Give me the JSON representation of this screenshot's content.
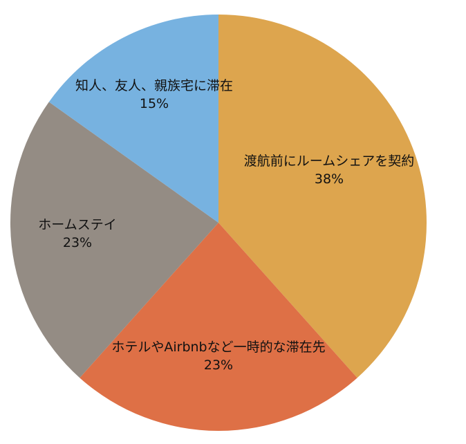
{
  "chart_data": {
    "type": "pie",
    "start_angle_deg": 0,
    "direction": "clockwise",
    "slices": [
      {
        "label": "渡航前にルームシェアを契約",
        "value": 38,
        "value_label": "38%",
        "color": "#DDA54E"
      },
      {
        "label": "ホテルやAirbnbなど一時的な滞在先",
        "value": 23,
        "value_label": "23%",
        "color": "#DE7046"
      },
      {
        "label": "ホームステイ",
        "value": 23,
        "value_label": "23%",
        "color": "#948C84"
      },
      {
        "label": "知人、友人、親族宅に滞在",
        "value": 15,
        "value_label": "15%",
        "color": "#77B2E0"
      }
    ]
  }
}
